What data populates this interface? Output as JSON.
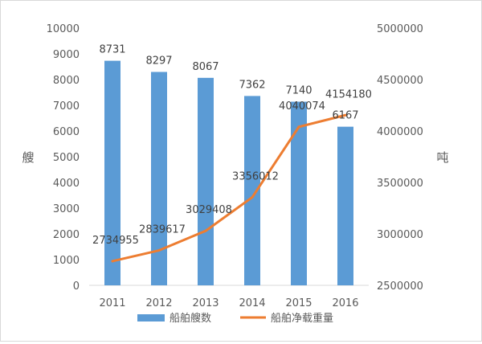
{
  "chart_data": {
    "type": "bar",
    "categories": [
      "2011",
      "2012",
      "2013",
      "2014",
      "2015",
      "2016"
    ],
    "y_left": {
      "label": "艘",
      "min": 0,
      "max": 10000,
      "step": 1000
    },
    "y_right": {
      "label": "吨",
      "min": 2500000,
      "max": 5000000,
      "step": 500000
    },
    "series": [
      {
        "name": "船舶艘数",
        "type": "bar",
        "axis": "left",
        "color": "#5b9bd5",
        "values": [
          8731,
          8297,
          8067,
          7362,
          7140,
          6167
        ]
      },
      {
        "name": "船舶净载重量",
        "type": "line",
        "axis": "right",
        "color": "#ed7d31",
        "values": [
          2734955,
          2839617,
          3029408,
          3356012,
          4040074,
          4154180
        ]
      }
    ],
    "grid": false,
    "legend_position": "bottom"
  }
}
